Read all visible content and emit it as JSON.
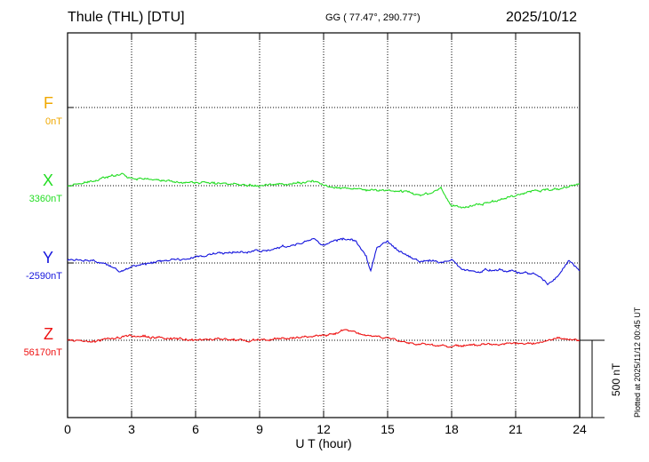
{
  "header": {
    "station": "Thule (THL)  [DTU]",
    "coordinates": "GG ( 77.47°, 290.77°)",
    "date": "2025/10/12"
  },
  "footer": {
    "plotted": "Plotted at 2025/11/12 00:45 UT",
    "scale_label": "500 nT"
  },
  "chart_data": {
    "type": "line",
    "xlabel": "U T (hour)",
    "xlim": [
      0,
      24
    ],
    "xticks": [
      "0",
      "3",
      "6",
      "9",
      "12",
      "15",
      "18",
      "21",
      "24"
    ],
    "scale_bar_nT": 500,
    "grid": true,
    "series": [
      {
        "name": "F",
        "base_label": "0nT",
        "color": "#f0a800",
        "has_data": false,
        "x": [],
        "y": []
      },
      {
        "name": "X",
        "base_label": "3360nT",
        "color": "#22dd22",
        "has_data": true,
        "x": [
          0,
          1,
          2,
          2.5,
          3,
          4,
          5,
          6,
          7,
          8,
          9,
          10,
          11,
          11.5,
          12,
          13,
          14,
          15,
          16,
          16.5,
          17,
          17.5,
          18,
          18.5,
          19,
          20,
          21,
          22,
          23,
          24
        ],
        "y": [
          0,
          20,
          60,
          80,
          50,
          40,
          25,
          20,
          15,
          10,
          5,
          10,
          20,
          30,
          0,
          -15,
          -30,
          -30,
          -40,
          -60,
          -50,
          -15,
          -130,
          -140,
          -130,
          -100,
          -60,
          -30,
          -25,
          10
        ]
      },
      {
        "name": "Y",
        "base_label": "-2590nT",
        "color": "#1515dd",
        "has_data": true,
        "x": [
          0,
          1,
          2,
          2.5,
          3,
          4,
          5,
          6,
          7,
          8,
          9,
          10,
          11,
          11.5,
          12,
          13,
          13.5,
          14,
          14.2,
          14.5,
          15,
          15.5,
          16,
          16.5,
          17,
          17.5,
          18,
          18.5,
          19,
          20,
          21,
          22,
          22.5,
          23,
          23.5,
          24
        ],
        "y": [
          20,
          20,
          -20,
          -60,
          -20,
          0,
          20,
          40,
          60,
          70,
          80,
          100,
          130,
          160,
          120,
          160,
          140,
          40,
          -60,
          100,
          140,
          80,
          40,
          10,
          20,
          0,
          20,
          -40,
          -60,
          -40,
          -60,
          -70,
          -130,
          -90,
          20,
          -40
        ]
      },
      {
        "name": "Z",
        "base_label": "56170nT",
        "color": "#ee1111",
        "has_data": true,
        "x": [
          0,
          1,
          2,
          3,
          4,
          5,
          6,
          7,
          8,
          9,
          10,
          11,
          12,
          12.5,
          13,
          13.5,
          14,
          15,
          16,
          17,
          18,
          19,
          20,
          21,
          22,
          23,
          24
        ],
        "y": [
          0,
          -10,
          10,
          30,
          20,
          10,
          0,
          10,
          0,
          0,
          10,
          20,
          30,
          40,
          70,
          50,
          30,
          20,
          -20,
          -30,
          -40,
          -30,
          -30,
          -20,
          -20,
          10,
          0
        ]
      }
    ]
  }
}
